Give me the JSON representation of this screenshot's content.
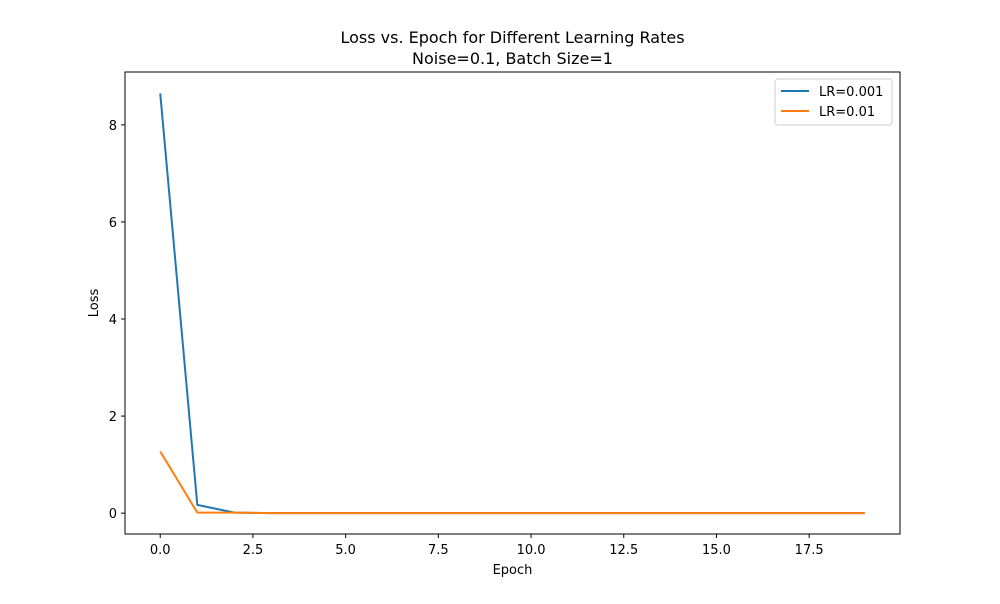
{
  "chart_data": {
    "type": "line",
    "title": "Loss vs. Epoch for Different Learning Rates",
    "subtitle": "Noise=0.1, Batch Size=1",
    "xlabel": "Epoch",
    "ylabel": "Loss",
    "xlim": [
      -0.95,
      19.95
    ],
    "ylim": [
      -0.43,
      9.09
    ],
    "xticks": [
      0,
      2.5,
      5,
      7.5,
      10,
      12.5,
      15,
      17.5
    ],
    "xtick_labels": [
      "0.0",
      "2.5",
      "5.0",
      "7.5",
      "10.0",
      "12.5",
      "15.0",
      "17.5"
    ],
    "yticks": [
      0,
      2,
      4,
      6,
      8
    ],
    "ytick_labels": [
      "0",
      "2",
      "4",
      "6",
      "8"
    ],
    "grid": false,
    "legend_position": "top-right",
    "x": [
      0,
      1,
      2,
      3,
      4,
      5,
      6,
      7,
      8,
      9,
      10,
      11,
      12,
      13,
      14,
      15,
      16,
      17,
      18,
      19
    ],
    "series": [
      {
        "name": "LR=0.001",
        "color": "#1f77b4",
        "values": [
          8.65,
          0.17,
          0.01,
          0.0,
          0.0,
          0.0,
          0.0,
          0.0,
          0.0,
          0.0,
          0.0,
          0.0,
          0.0,
          0.0,
          0.0,
          0.0,
          0.0,
          0.0,
          0.0,
          0.0
        ]
      },
      {
        "name": "LR=0.01",
        "color": "#ff7f0e",
        "values": [
          1.27,
          0.01,
          0.01,
          0.0,
          0.0,
          0.0,
          0.0,
          0.0,
          0.0,
          0.0,
          0.0,
          0.0,
          0.0,
          0.0,
          0.0,
          0.0,
          0.0,
          0.0,
          0.0,
          0.0
        ]
      }
    ]
  }
}
